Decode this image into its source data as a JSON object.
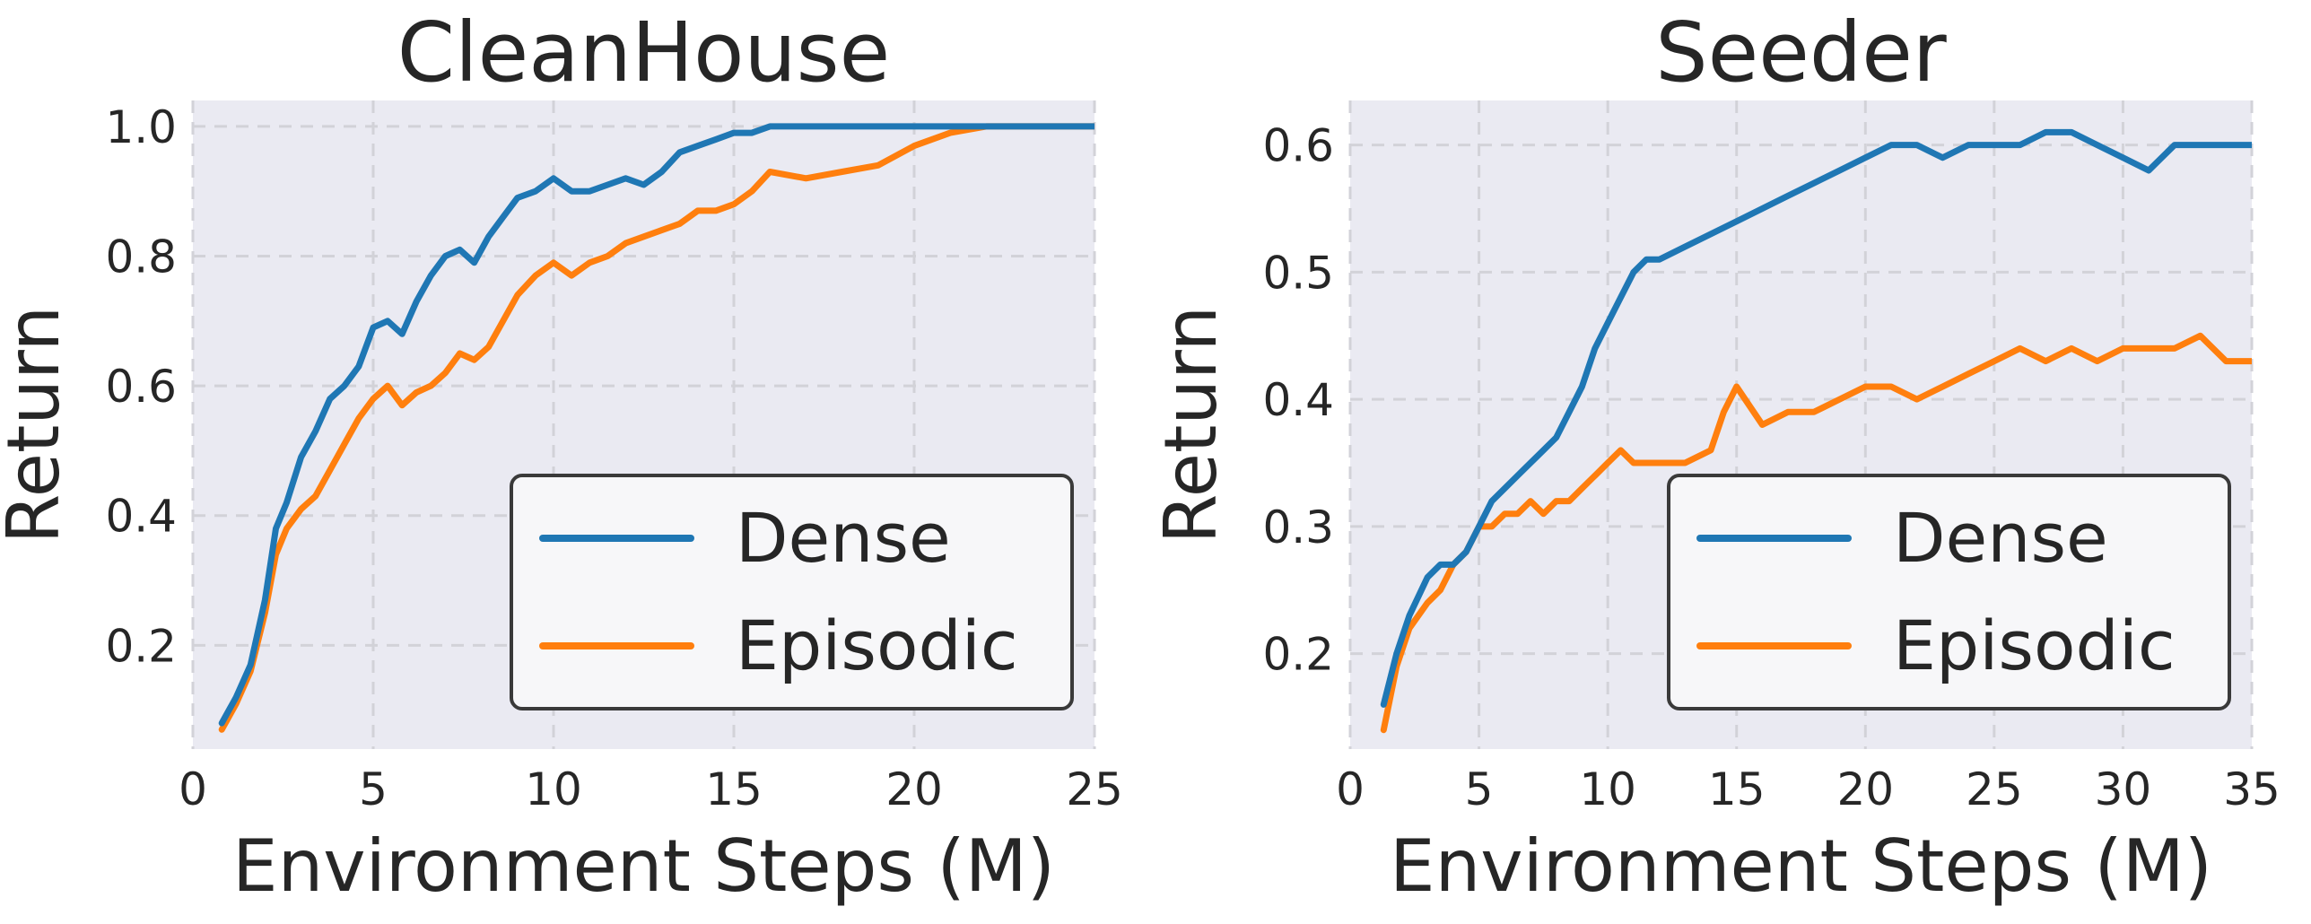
{
  "colors": {
    "dense": "#1f77b4",
    "episodic": "#ff7f0e",
    "plot_bg": "#eaeaf2"
  },
  "chart_data": [
    {
      "type": "line",
      "title": "CleanHouse",
      "xlabel": "Environment Steps (M)",
      "ylabel": "Return",
      "xlim": [
        0,
        25
      ],
      "ylim": [
        0.04,
        1.04
      ],
      "xticks": [
        0,
        5,
        10,
        15,
        20,
        25
      ],
      "yticks": [
        0.2,
        0.4,
        0.6,
        0.8,
        1.0
      ],
      "xtick_labels": [
        "0",
        "5",
        "10",
        "15",
        "20",
        "25"
      ],
      "ytick_labels": [
        "0.2",
        "0.4",
        "0.6",
        "0.8",
        "1.0"
      ],
      "grid": true,
      "legend_position": "lower-right",
      "series": [
        {
          "name": "Dense",
          "x": [
            0.8,
            1.2,
            1.6,
            2.0,
            2.3,
            2.6,
            3.0,
            3.4,
            3.8,
            4.2,
            4.6,
            5.0,
            5.4,
            5.8,
            6.2,
            6.6,
            7.0,
            7.4,
            7.8,
            8.2,
            8.6,
            9.0,
            9.5,
            10.0,
            10.5,
            11.0,
            11.5,
            12.0,
            12.5,
            13.0,
            13.5,
            14.0,
            14.5,
            15.0,
            15.5,
            16.0,
            17.0,
            18.0,
            19.0,
            20.0,
            21.0,
            22.0,
            23.0,
            24.0,
            25.0
          ],
          "y": [
            0.08,
            0.12,
            0.17,
            0.27,
            0.38,
            0.42,
            0.49,
            0.53,
            0.58,
            0.6,
            0.63,
            0.69,
            0.7,
            0.68,
            0.73,
            0.77,
            0.8,
            0.81,
            0.79,
            0.83,
            0.86,
            0.89,
            0.9,
            0.92,
            0.9,
            0.9,
            0.91,
            0.92,
            0.91,
            0.93,
            0.96,
            0.97,
            0.98,
            0.99,
            0.99,
            1.0,
            1.0,
            1.0,
            1.0,
            1.0,
            1.0,
            1.0,
            1.0,
            1.0,
            1.0
          ]
        },
        {
          "name": "Episodic",
          "x": [
            0.8,
            1.2,
            1.6,
            2.0,
            2.3,
            2.6,
            3.0,
            3.4,
            3.8,
            4.2,
            4.6,
            5.0,
            5.4,
            5.8,
            6.2,
            6.6,
            7.0,
            7.4,
            7.8,
            8.2,
            8.6,
            9.0,
            9.5,
            10.0,
            10.5,
            11.0,
            11.5,
            12.0,
            12.5,
            13.0,
            13.5,
            14.0,
            14.5,
            15.0,
            15.5,
            16.0,
            17.0,
            18.0,
            19.0,
            20.0,
            21.0,
            22.0,
            23.0,
            24.0,
            25.0
          ],
          "y": [
            0.07,
            0.11,
            0.16,
            0.25,
            0.34,
            0.38,
            0.41,
            0.43,
            0.47,
            0.51,
            0.55,
            0.58,
            0.6,
            0.57,
            0.59,
            0.6,
            0.62,
            0.65,
            0.64,
            0.66,
            0.7,
            0.74,
            0.77,
            0.79,
            0.77,
            0.79,
            0.8,
            0.82,
            0.83,
            0.84,
            0.85,
            0.87,
            0.87,
            0.88,
            0.9,
            0.93,
            0.92,
            0.93,
            0.94,
            0.97,
            0.99,
            1.0,
            1.0,
            1.0,
            1.0
          ]
        }
      ]
    },
    {
      "type": "line",
      "title": "Seeder",
      "xlabel": "Environment Steps (M)",
      "ylabel": "Return",
      "xlim": [
        0,
        35
      ],
      "ylim": [
        0.125,
        0.635
      ],
      "xticks": [
        0,
        5,
        10,
        15,
        20,
        25,
        30,
        35
      ],
      "yticks": [
        0.2,
        0.3,
        0.4,
        0.5,
        0.6
      ],
      "xtick_labels": [
        "0",
        "5",
        "10",
        "15",
        "20",
        "25",
        "30",
        "35"
      ],
      "ytick_labels": [
        "0.2",
        "0.3",
        "0.4",
        "0.5",
        "0.6"
      ],
      "grid": true,
      "legend_position": "lower-right",
      "series": [
        {
          "name": "Dense",
          "x": [
            1.3,
            1.8,
            2.3,
            3.0,
            3.5,
            4.0,
            4.5,
            5.0,
            5.5,
            6.0,
            6.5,
            7.0,
            7.5,
            8.0,
            8.5,
            9.0,
            9.5,
            10.0,
            10.5,
            11.0,
            11.5,
            12.0,
            13.0,
            14.0,
            15.0,
            16.0,
            17.0,
            18.0,
            19.0,
            20.0,
            21.0,
            22.0,
            23.0,
            24.0,
            25.0,
            26.0,
            27.0,
            28.0,
            29.0,
            30.0,
            31.0,
            32.0,
            33.0,
            34.0,
            35.0
          ],
          "y": [
            0.16,
            0.2,
            0.23,
            0.26,
            0.27,
            0.27,
            0.28,
            0.3,
            0.32,
            0.33,
            0.34,
            0.35,
            0.36,
            0.37,
            0.39,
            0.41,
            0.44,
            0.46,
            0.48,
            0.5,
            0.51,
            0.51,
            0.52,
            0.53,
            0.54,
            0.55,
            0.56,
            0.57,
            0.58,
            0.59,
            0.6,
            0.6,
            0.59,
            0.6,
            0.6,
            0.6,
            0.61,
            0.61,
            0.6,
            0.59,
            0.58,
            0.6,
            0.6,
            0.6,
            0.6
          ]
        },
        {
          "name": "Episodic",
          "x": [
            1.3,
            1.8,
            2.3,
            3.0,
            3.5,
            4.0,
            4.5,
            5.0,
            5.5,
            6.0,
            6.5,
            7.0,
            7.5,
            8.0,
            8.5,
            9.0,
            9.5,
            10.0,
            10.5,
            11.0,
            11.5,
            12.0,
            13.0,
            14.0,
            14.5,
            15.0,
            16.0,
            17.0,
            18.0,
            19.0,
            20.0,
            21.0,
            22.0,
            23.0,
            24.0,
            25.0,
            26.0,
            27.0,
            28.0,
            29.0,
            30.0,
            31.0,
            32.0,
            33.0,
            34.0,
            35.0
          ],
          "y": [
            0.14,
            0.19,
            0.22,
            0.24,
            0.25,
            0.27,
            0.28,
            0.3,
            0.3,
            0.31,
            0.31,
            0.32,
            0.31,
            0.32,
            0.32,
            0.33,
            0.34,
            0.35,
            0.36,
            0.35,
            0.35,
            0.35,
            0.35,
            0.36,
            0.39,
            0.41,
            0.38,
            0.39,
            0.39,
            0.4,
            0.41,
            0.41,
            0.4,
            0.41,
            0.42,
            0.43,
            0.44,
            0.43,
            0.44,
            0.43,
            0.44,
            0.44,
            0.44,
            0.45,
            0.43,
            0.43
          ]
        }
      ]
    }
  ]
}
